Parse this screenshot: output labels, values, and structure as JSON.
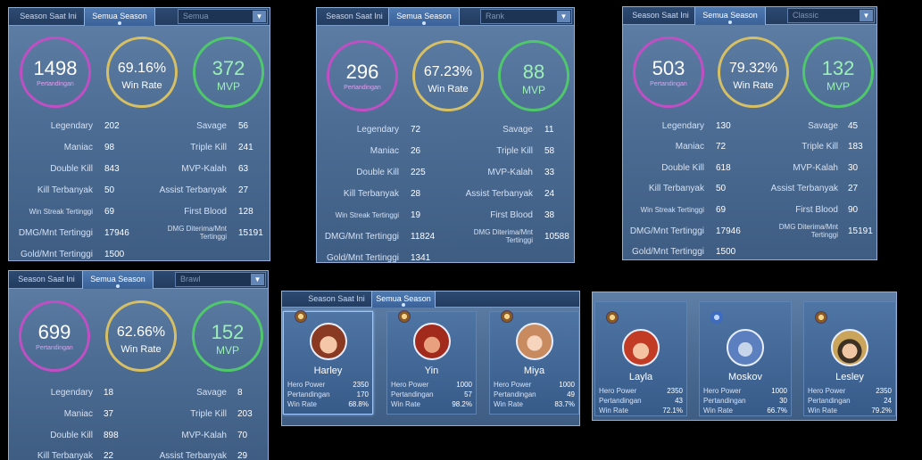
{
  "tabs": {
    "current": "Season Saat Ini",
    "all": "Semua Season"
  },
  "stat_labels": {
    "legendary": "Legendary",
    "savage": "Savage",
    "maniac": "Maniac",
    "triple_kill": "Triple Kill",
    "double_kill": "Double Kill",
    "mvp_kalah": "MVP-Kalah",
    "kill_terbanyak": "Kill Terbanyak",
    "assist_terbanyak": "Assist Terbanyak",
    "win_streak": "Win Streak Tertinggi",
    "first_blood": "First Blood",
    "dmg_mnt": "DMG/Mnt Tertinggi",
    "dmg_diterima": "DMG Diterima/Mnt Tertinggi",
    "gold_mnt": "Gold/Mnt Tertinggi"
  },
  "circle_labels": {
    "matches": "Pertandingan",
    "winrate": "Win Rate",
    "mvp": "MVP"
  },
  "panels": [
    {
      "mode": "Semua",
      "matches": "1498",
      "winrate": "69.16%",
      "mvp": "372",
      "stats": {
        "legendary": "202",
        "savage": "56",
        "maniac": "98",
        "triple_kill": "241",
        "double_kill": "843",
        "mvp_kalah": "63",
        "kill_terbanyak": "50",
        "assist_terbanyak": "27",
        "win_streak": "69",
        "first_blood": "128",
        "dmg_mnt": "17946",
        "dmg_diterima": "15191",
        "gold_mnt": "1500"
      }
    },
    {
      "mode": "Rank",
      "matches": "296",
      "winrate": "67.23%",
      "mvp": "88",
      "stats": {
        "legendary": "72",
        "savage": "11",
        "maniac": "26",
        "triple_kill": "58",
        "double_kill": "225",
        "mvp_kalah": "33",
        "kill_terbanyak": "28",
        "assist_terbanyak": "24",
        "win_streak": "19",
        "first_blood": "38",
        "dmg_mnt": "11824",
        "dmg_diterima": "10588",
        "gold_mnt": "1341"
      }
    },
    {
      "mode": "Classic",
      "matches": "503",
      "winrate": "79.32%",
      "mvp": "132",
      "stats": {
        "legendary": "130",
        "savage": "45",
        "maniac": "72",
        "triple_kill": "183",
        "double_kill": "618",
        "mvp_kalah": "30",
        "kill_terbanyak": "50",
        "assist_terbanyak": "27",
        "win_streak": "69",
        "first_blood": "90",
        "dmg_mnt": "17946",
        "dmg_diterima": "15191",
        "gold_mnt": "1500"
      }
    },
    {
      "mode": "Brawl",
      "matches": "699",
      "winrate": "62.66%",
      "mvp": "152",
      "stats": {
        "legendary": "18",
        "savage": "8",
        "maniac": "37",
        "triple_kill": "203",
        "double_kill": "898",
        "mvp_kalah": "70",
        "kill_terbanyak": "22",
        "assist_terbanyak": "29"
      }
    }
  ],
  "hero_labels": {
    "power": "Hero Power",
    "matches": "Pertandingan",
    "winrate": "Win Rate"
  },
  "heroes_a": [
    {
      "name": "Harley",
      "power": "2350",
      "matches": "170",
      "winrate": "68.8%",
      "icon": "hero-harley-avatar"
    },
    {
      "name": "Yin",
      "power": "1000",
      "matches": "57",
      "winrate": "98.2%",
      "icon": "hero-yin-avatar"
    },
    {
      "name": "Miya",
      "power": "1000",
      "matches": "49",
      "winrate": "83.7%",
      "icon": "hero-miya-avatar"
    }
  ],
  "heroes_b": [
    {
      "name": "Layla",
      "power": "2350",
      "matches": "43",
      "winrate": "72.1%",
      "icon": "hero-layla-avatar"
    },
    {
      "name": "Moskov",
      "power": "1000",
      "matches": "30",
      "winrate": "66.7%",
      "icon": "hero-moskov-avatar"
    },
    {
      "name": "Lesley",
      "power": "2350",
      "matches": "24",
      "winrate": "79.2%",
      "icon": "hero-lesley-avatar"
    }
  ],
  "colors": {
    "pertandingan_ring": "#c04fc4",
    "winrate_ring": "#d7c063",
    "mvp_ring": "#4fc86c"
  }
}
